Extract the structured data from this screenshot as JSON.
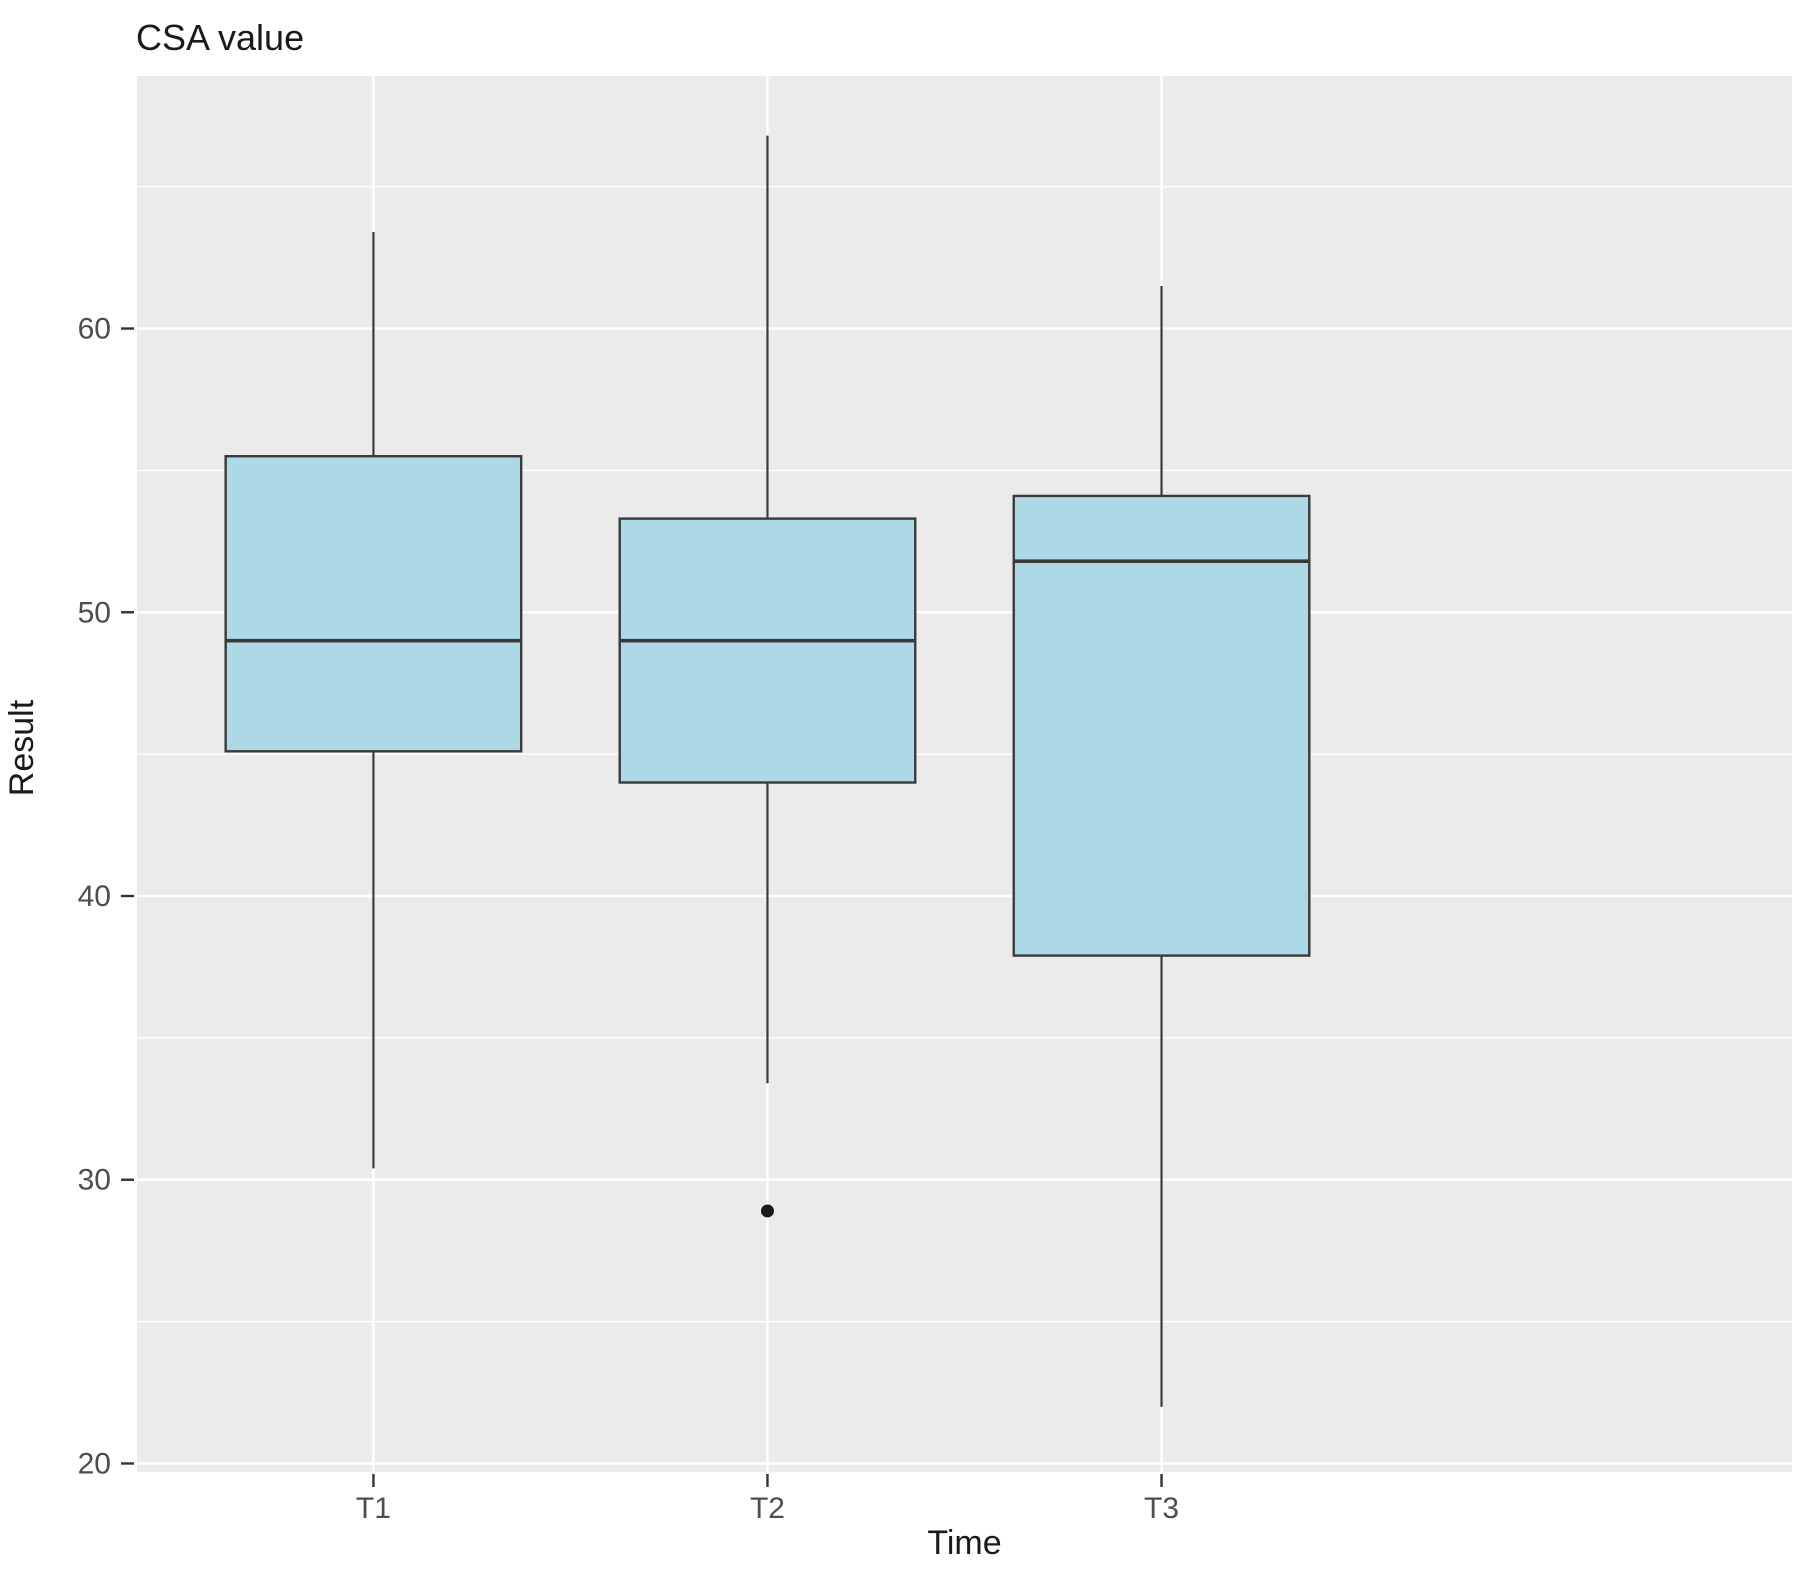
{
  "chart_data": {
    "type": "boxplot",
    "title": "CSA value",
    "xlabel": "Time",
    "ylabel": "Result",
    "categories": [
      "T1",
      "T2",
      "T3"
    ],
    "ylim": [
      19.7,
      68.9
    ],
    "yticks": [
      20,
      30,
      40,
      50,
      60
    ],
    "yticks_minor": [
      25,
      35,
      45,
      55,
      65
    ],
    "grid": true,
    "legend": "none",
    "series": [
      {
        "name": "T1",
        "whisker_low": 30.4,
        "q1": 45.1,
        "median": 49.0,
        "q3": 55.5,
        "whisker_high": 63.4,
        "outliers": []
      },
      {
        "name": "T2",
        "whisker_low": 33.4,
        "q1": 44.0,
        "median": 49.0,
        "q3": 53.3,
        "whisker_high": 66.8,
        "outliers": [
          28.9
        ]
      },
      {
        "name": "T3",
        "whisker_low": 22.0,
        "q1": 37.9,
        "median": 51.8,
        "q3": 54.1,
        "whisker_high": 61.5,
        "outliers": []
      }
    ],
    "style": {
      "panel_bg": "#EBEBEB",
      "grid_color": "#FFFFFF",
      "box_fill": "#ADD8E6",
      "box_stroke": "#3A3A3A",
      "outlier_color": "#1A1A1A",
      "tick_mark_color": "#333333",
      "tick_label_color": "#4D4D4D",
      "title_color": "#1A1A1A"
    }
  }
}
